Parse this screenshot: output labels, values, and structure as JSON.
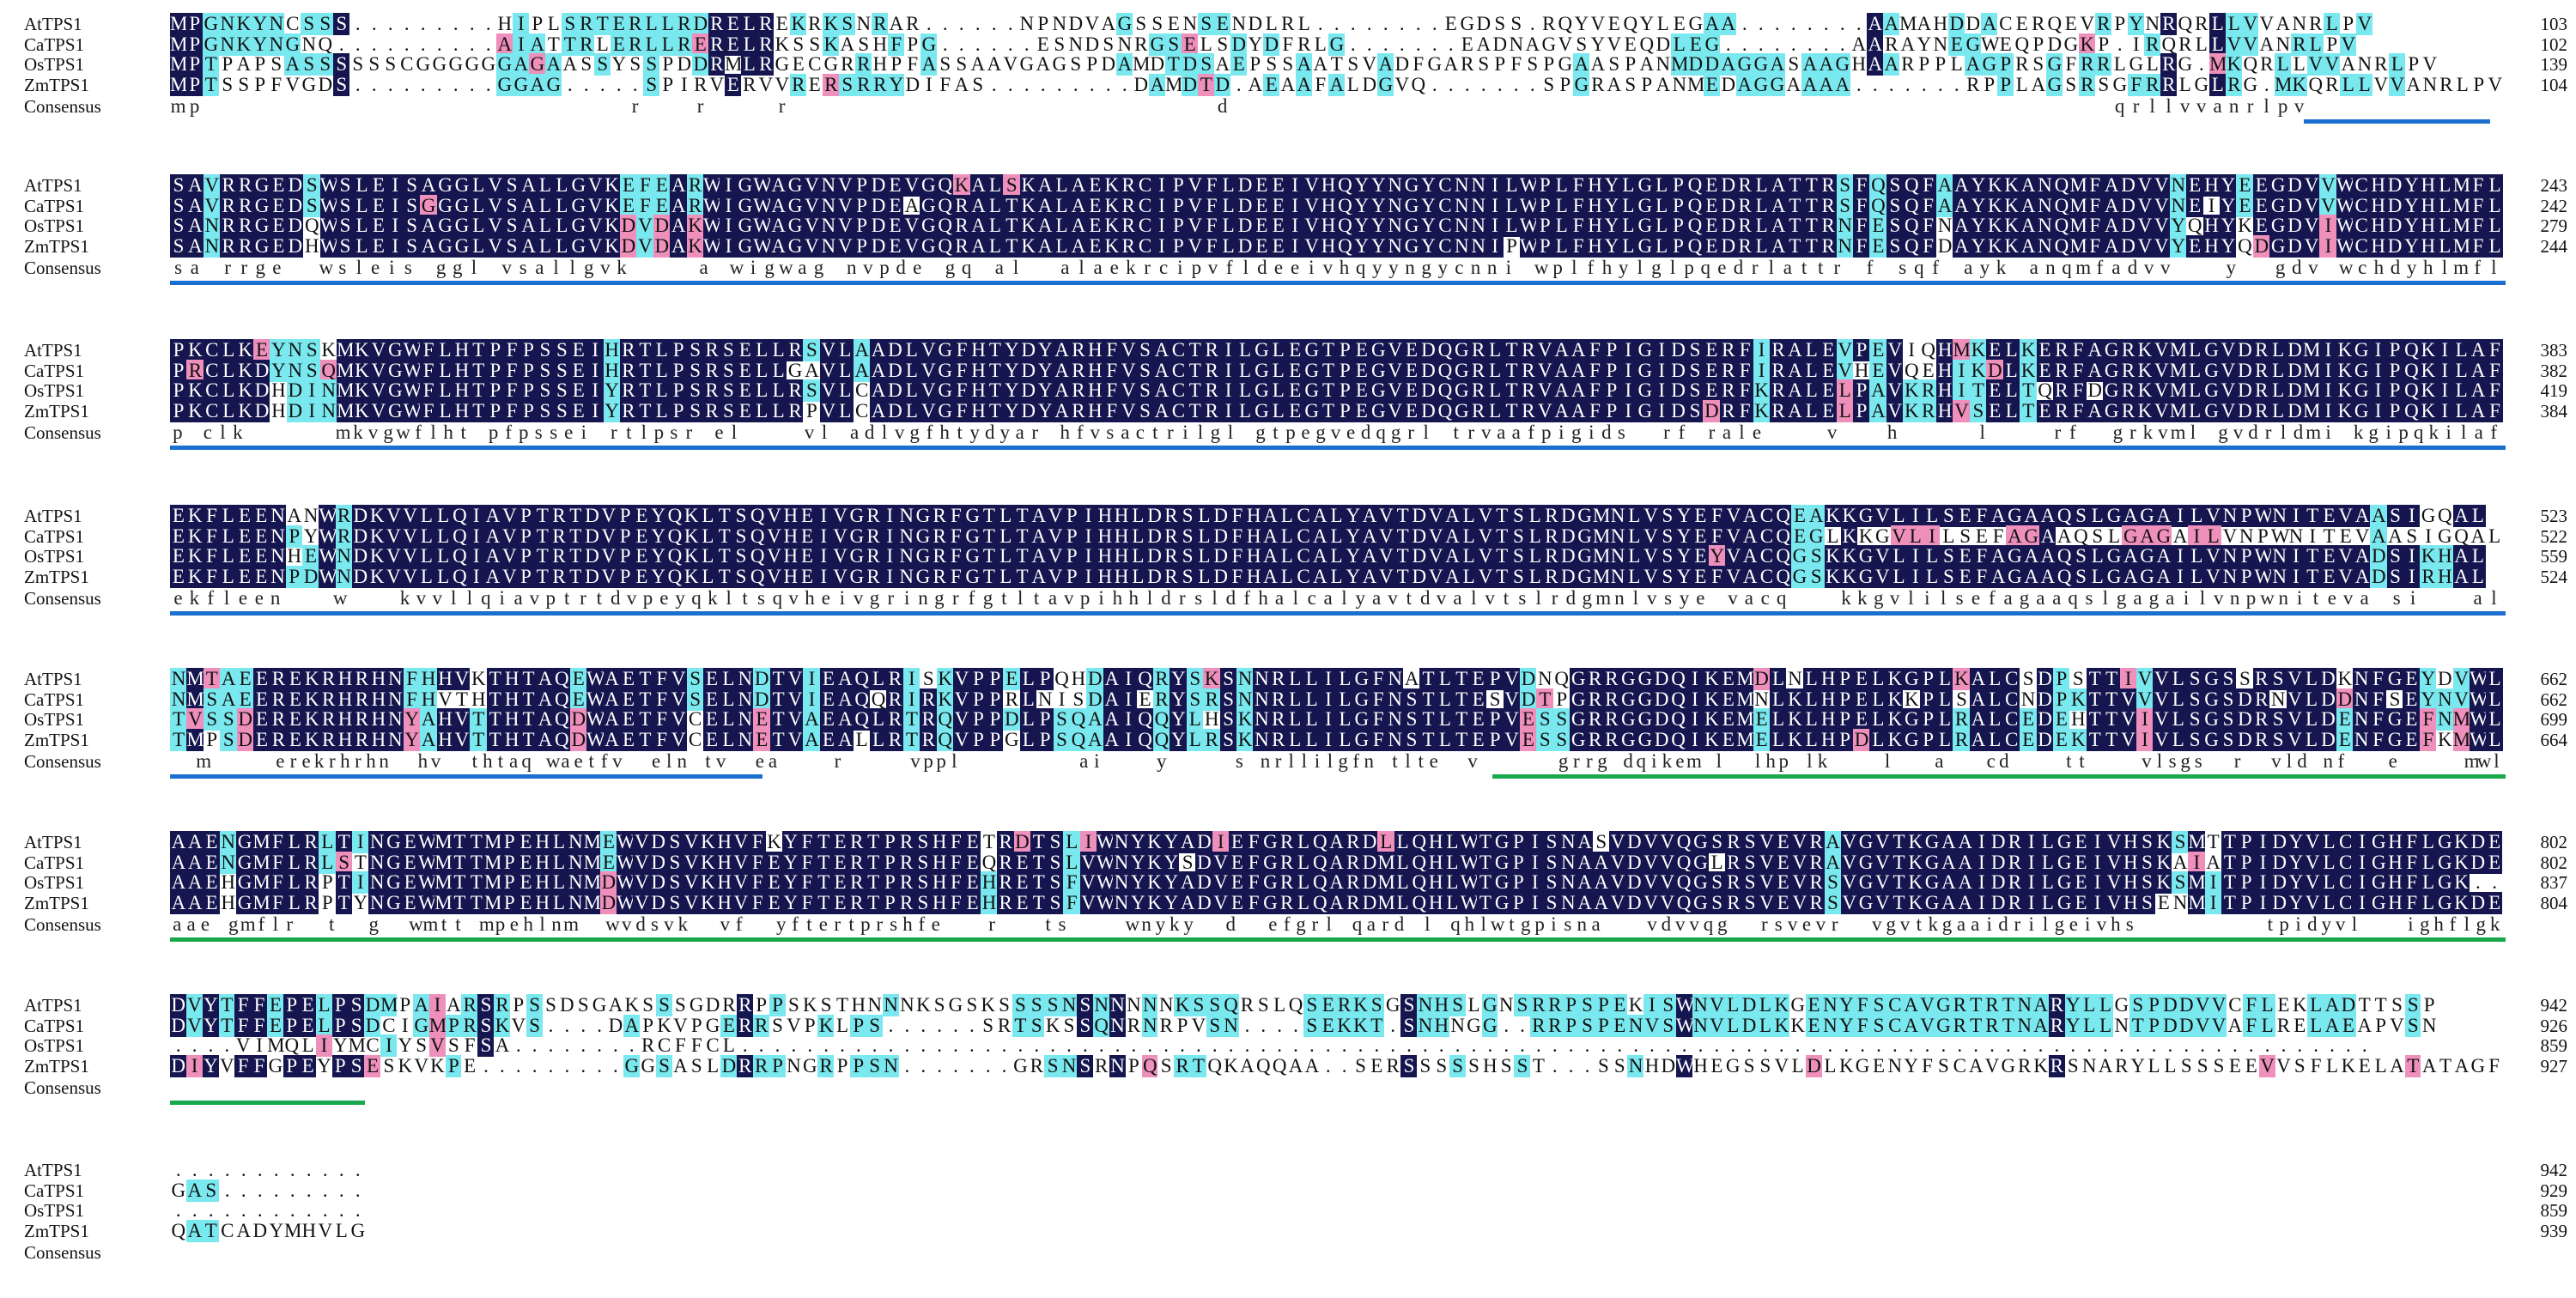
{
  "names": [
    "AtTPS1",
    "CaTPS1",
    "OsTPS1",
    "ZmTPS1",
    "Consensus"
  ],
  "colors": {
    "identical": "#15164f",
    "similar_cyan": "#7ae8ef",
    "similar_pink": "#ee8fbc",
    "domain_blue": "#1b6fd0",
    "domain_green": "#1aa84d"
  },
  "blocks": [
    {
      "ends": [
        "103",
        "102",
        "139",
        "104"
      ],
      "rows": [
        "MPGNKYNCSSS.........HIPLSRTERLLRDRELREKRKSNRAR......NPNDVAGSSENSENDLRL........EGDSS.RQYVEQYLEGAA........AAMAHDDACERQEVRPYNRQRLLVVANRLPV",
        "MPGNKYNGNQ..........AIATTRLERLLRERELRKSSKASHFPG......ESNDSNRGSELSDYDFRLG.......EADNAGVSYVEQDLEG........AARAYNEGWEQPDGKP.IRQRLLVVANRLPV",
        "MPTPAPSASSSSSSCGGGGGGAGAASSYSSPDDRMLRGECGRRHPFASSAAVGAGSPDAMDTDSAEPSSAATSVADFGARSPFSPGAASPANMDDAGGASAAGHAARPPLAGPRSGFRRLGLRG.MKQRLLVVANRLPV",
        "MPTSSPFVGDS.........GGAG.....SPIRVERVVRERSRRYDIFAS.........DAMDTD.AEAAFALDGVQ.......SPGRASPANMEDAGGAAAA.......RPPLAGSRSGFRRLGLRG.MKQRLLVVANRLPV"
      ],
      "consensus": "mp                          r   r    r                          d                                                      qrllvvanrlpv"
    },
    {
      "ends": [
        "243",
        "242",
        "279",
        "244"
      ],
      "rows": [
        "SAVRRGEDSWSLEISAGGLVSALLGVKEFEARWIGWAGVNVPDEVGQKALSKALAEKRCIPVFLDEEIVHQYYNGYCNNILWPLFHYLGLPQEDRLATTRSFQSQFAAYKKANQMFADVVNEHYEEGDVVWCHDYHLMFL",
        "SAVRRGEDSWSLEISGGGLVSALLGVKEFEARWIGWAGVNVPDEAGQRALTKALAEKRCIPVFLDEEIVHQYYNGYCNNILWPLFHYLGLPQEDRLATTRSFQSQFAAYKKANQMFADVVNEIYEEGDVVWCHDYHLMFL",
        "SANRRGEDQWSLEISAGGLVSALLGVKDVDAKWIGWAGVNVPDEVGQRALTKALAEKRCIPVFLDEEIVHQYYNGYCNNILWPLFHYLGLPQEDRLATTRNFESQFNAYKKANQMFADVVYQHYKEGDVIWCHDYHLMFL",
        "SANRRGEDHWSLEISAGGLVSALLGVKDVDAKWIGWAGVNVPDEVGQRALTKALAEKRCIPVFLDEEIVHQYYNGYCNNIPWPLFHYLGLPQEDRLATTRNFESQFDAYKKANQMFADVVYEHYQDGDVIWCHDYHLMFL"
      ],
      "consensus": "sa rrge  wsleis ggl vsallgvk    a wigwag nvpde gq al  alaekrcipvfldeeivhqyyngycnni wplfhylglpqedrlattr f sqf ayk anqmfadvv   y  gdv wchdyhlmfl"
    },
    {
      "ends": [
        "383",
        "382",
        "419",
        "384"
      ],
      "rows": [
        "PKCLKEYNSKMKVGWFLHTPFPSSEIHRTLPSRSELLRSVLAADLVGFHTYDYARHFVSACTRILGLEGTPEGVEDQGRLTRVAAFPIGIDSERFIRALEVPEVIQHMKELKERFAGRKVMLGVDRLDMIKGIPQKILAF",
        "PRCLKDYNSQMKVGWFLHTPFPSSEIHRTLPSRSELLGAVLAADLVGFHTYDYARHFVSACTRILGLEGTPEGVEDQGRLTRVAAFPIGIDSERFIRALEVHEVQEHIKDLKERFAGRKVMLGVDRLDMIKGIPQKILAF",
        "PKCLKDHDINMKVGWFLHTPFPSSEIYRTLPSRSELLRSVLCADLVGFHTYDYARHFVSACTRILGLEGTPEGVEDQGRLTRVAAFPIGIDSERFKRALELPAVKRHITELTQRFDGRKVMLGVDRLDMIKGIPQKILAF",
        "PKCLKDHDINMKVGWFLHTPFPSSEIYRTLPSRSELLRPVLCADLVGFHTYDYARHFVSACTRILGLEGTPEGVEDQGRLTRVAAFPIGIDSDRFKRALELPAVKRHVSELTERFAGRKVMLGVDRLDMIKGIPQKILAF"
      ],
      "consensus": "p clk      mkvgwflht pfpssei rtlpsr el    vl adlvgfhtydyar hfvsactrilgl gtpegvedqgrl trvaafpigids  rf rale    v   h     l    rf  grkvml gvdrldmi kgipqkilaf"
    },
    {
      "ends": [
        "523",
        "522",
        "559",
        "524"
      ],
      "rows": [
        "EKFLEENANWRDKVVLLQIAVPTRTDVPEYQKLTSQVHEIVGRINGRFGTLTAVPIHHLDRSLDFHALCALYAVTDVALVTSLRDGMNLVSYEFVACQEAKKGVLILSEFAGAAQSLGAGAILVNPWNITEVAASIGQAL",
        "EKFLEENPYWRDKVVLLQIAVPTRTDVPEYQKLTSQVHEIVGRINGRFGTLTAVPIHHLDRSLDFHALCALYAVTDVALVTSLRDGMNLVSYEFVACQEGLKKGVLILSEFAGAAQSLGAGAILVNPWNITEVAASIGQAL",
        "EKFLEENHEWNDKVVLLQIAVPTRTDVPEYQKLTSQVHEIVGRINGRFGTLTAVPIHHLDRSLDFHALCALYAVTDVALVTSLRDGMNLVSYEYVACQGSKKGVLILSEFAGAAQSLGAGAILVNPWNITEVADSIKHAL",
        "EKFLEENPDWNDKVVLLQIAVPTRTDVPEYQKLTSQVHEIVGRINGRFGTLTAVPIHHLDRSLDFHALCALYAVTDVALVTSLRDGMNLVSYEFVACQGSKKGVLILSEFAGAAQSLGAGAILVNPWNITEVADSIRHAL"
      ],
      "consensus": "ekfleen   w   kvvllqiavptrtdvpeyqkltsqvheivgringrfgtltavpihhldrsldfhalcalyavtdvalvtslrdgmnlvsye vacq   kkgvlilsefagaaqslgagailvnpwniteva si   al"
    },
    {
      "ends": [
        "662",
        "662",
        "699",
        "664"
      ],
      "rows": [
        "NMTAEEREKRHRHNFHHVKTHTAQEWAETFVSELNDTVIEAQLRISKVPPELPQHDAIQRYSKSNNRLLILGFNATLTEPVDNQGRRGGDQIKEMDLNLHPELKGPLKALCSDPSTTIVVLSGSSRSVLDKNFGEYDVWL",
        "NMSAEEREKRHRHNFHVTHTHTAQEWAETFVSELNDTVIEAQQRIRKVPPRLNISDAIERYSRSNNRLLILGFNSTLTESVDTPGRRGGDQIKEMNLKLHPELKKPLSALCNDPKTTVVVLSGSDRNVLDDNFSEYNVWL",
        "TVSSDEREKRHRHNYAHVTTHTAQDWAETFVCELNETVAEAQLRTRQVPPDLPSQAAIQQYLHSKNRLLILGFNSTLTEPVESSGRRGGDQIKEMELKLHPELKGPLRALCEDEHTTVIVLSGSDRSVLDENFGEFNMWL",
        "TMPSDEREKRHRHNYAHVTTHTAQDWAETFVCELNETVAEALLRTRQVPPGLPSQAAIQQYLRSKNRLLILGFNSTLTEPVESSGRRGGDQIKEMELKLHPDLKGPLRALCEDEKTTVIVLSGSDRSVLDENFGEFKMWL"
      ],
      "consensus": "  m     erekrhrhn  hv  thtaq waetfv  eln tv  ea    r     vppl         ai    y     s nrllilgfn tlte  v      grrg dqikem l  lhp lk    l   a   cd    tt    vlsgs  r  vld nf   e     mwl"
    },
    {
      "ends": [
        "802",
        "802",
        "837",
        "804"
      ],
      "rows": [
        "AAENGMFLRLTINGEWMTTMPEHLNMEWVDSVKHVFKYFTERTPRSHFETRDTSLIWNYKYADIEFGRLQARDLLQHLWTGPISNASVDVVQGSRSVEVRAVGVTKGAAIDRILGEIVHSKSMTTPIDYVLCIGHFLGKDE",
        "AAENGMFLRLSTNGEWMTTMPEHLNMEWVDSVKHVFEYFTERTPRSHFEQRETSLVWNYKYSDVEFGRLQARDMLQHLWTGPISNAAVDVVQGLRSVEVRAVGVTKGAAIDRILGEIVHSKAIATPIDYVLCIGHFLGKDE",
        "AAEHGMFLRPTINGEWMTTMPEHLNMDWVDSVKHVFEYFTERTPRSHFEHRETSFVWNYKYADVEFGRLQARDMLQHLWTGPISNAAVDVVQGSRSVEVRSVGVTKGAAIDRILGEIVHSKSMITPIDYVLCIGHFLGK..",
        "AAEHGMFLRPTYNGEWMTTMPEHLNMDWVDSVKHVFEYFTERTPRSHFEHRETSFVWNYKYADVEFGRLQARDMLQHLWTGPISNAAVDVVQGSRSVEVRSVGVTKGAAIDRILGEIVHSENMITPIDYVLCIGHFLGKDE"
      ],
      "consensus": "aae gmflr  t  g  wmtt mpehlnm  wvdsvk  vf  yftertprshfe   r   ts    wnyky  d  efgrl qard l qhlwtgpisna   vdvvqg  rsvevr  vgvtkgaaidrilgeivhs         tpidyvl   ighflgk"
    },
    {
      "ends": [
        "942",
        "926",
        "859",
        "927"
      ],
      "rows": [
        "DVYTFFEPELPSDMPAIARSRPSSDSGAKSSSGDRRPPSKSTHNNNKSGSKSSSSNSNNNNNKSSQRSLQSERKSGSNHSLGNSRRPSPEKISWNVLDLKGENYFSCAVGRTRTNARYLLGSPDDVVCFLEKLADTTSSP",
        "DVYTFFEPELPSDCIGMPRSKVS....DAPKVPGERRSVPKLPS......SRTSKSSQNRNRPVSN....SEKKT.SNHNGG..RRPSPENVSWNVLDLKKENYFSCAVGRTRTNARYLLNTPDDVVAFLRELAEAPVSN",
        "....VIMQLIYMCIYSVSFSA........RCFFCL.....................................................................................................",
        "DIYVFFGPEYPSESKVKPE.........GGSASLDRRPNGRPPSN.......GRSNSRNPQSRTQKAQQAA..SERSSSSSHSST...SSNHDWHEGSSVLDLKGENYFSCAVGRKRSNARYLLSSSEEVVSFLKELATATAGF"
      ],
      "consensus": ""
    },
    {
      "ends": [
        "942",
        "929",
        "859",
        "939"
      ],
      "rows": [
        "............",
        "GAS.........",
        "............",
        "QATCADYMHVLG"
      ],
      "consensus": ""
    }
  ]
}
